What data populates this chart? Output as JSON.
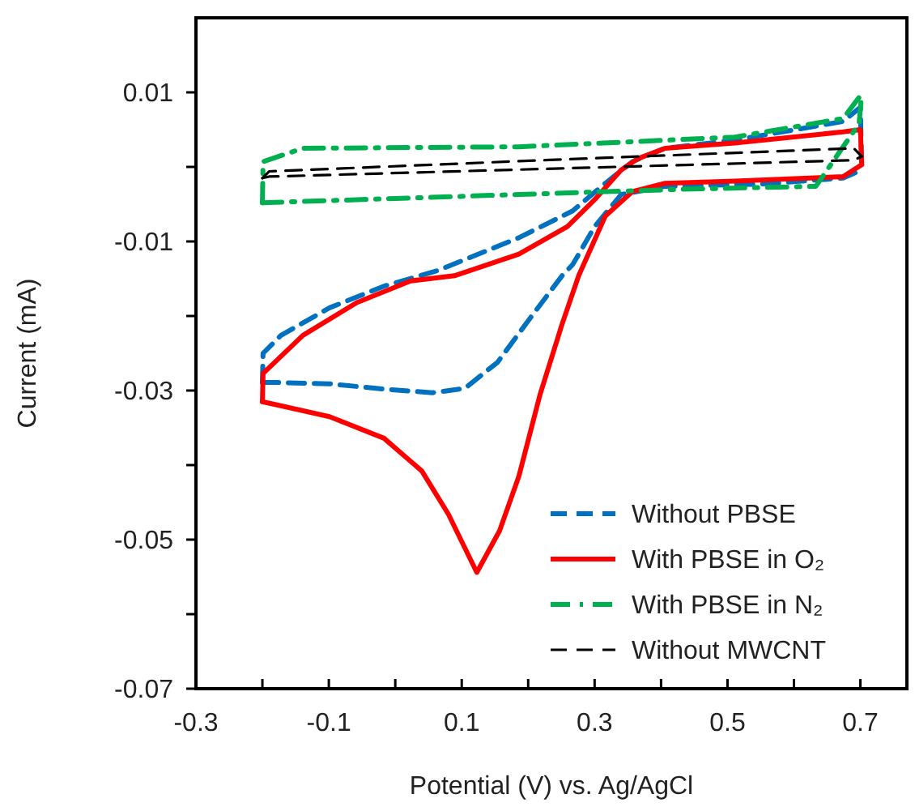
{
  "chart_data": {
    "type": "line",
    "xlabel": "Potential (V) vs. Ag/AgCl",
    "ylabel": "Current (mA)",
    "xlim": [
      -0.3,
      0.77
    ],
    "ylim": [
      -0.07,
      0.02
    ],
    "xticks": [
      -0.3,
      {
        "value": -0.2,
        "label": null
      },
      -0.1,
      {
        "value": 0,
        "label": null
      },
      0.1,
      {
        "value": 0.2,
        "label": null
      },
      0.3,
      {
        "value": 0.4,
        "label": null
      },
      0.5,
      {
        "value": 0.6,
        "label": null
      },
      0.7
    ],
    "yticks": [
      -0.07,
      {
        "value": -0.06,
        "label": null
      },
      -0.05,
      {
        "value": -0.04,
        "label": null
      },
      -0.03,
      {
        "value": -0.02,
        "label": null
      },
      -0.01,
      {
        "value": 0,
        "label": null
      },
      0.01
    ],
    "grid": false,
    "legend": "bottom right",
    "marker": "none",
    "series": [
      {
        "name": "Without PBSE",
        "color": "#0070c0",
        "line_style": "dashed",
        "x": [
          -0.2,
          -0.184,
          -0.099,
          -0.017,
          0.056,
          0.105,
          0.154,
          0.202,
          0.251,
          0.267,
          0.3,
          0.34,
          0.406,
          0.55,
          0.674,
          0.702
        ],
        "values": [
          -0.0289,
          -0.0289,
          -0.0291,
          -0.0298,
          -0.0303,
          -0.0297,
          -0.0262,
          -0.0204,
          -0.0146,
          -0.0131,
          -0.008,
          -0.0037,
          -0.0026,
          -0.0023,
          -0.0015,
          -0.0004
        ]
      },
      {
        "color": "#0070c0",
        "line_style": "dashed",
        "x": [
          -0.2,
          -0.199,
          -0.172,
          -0.099,
          -0.017,
          0.064,
          0.186,
          0.267,
          0.316,
          0.357,
          0.406,
          0.511,
          0.674,
          0.7,
          0.702
        ],
        "values": [
          -0.0289,
          -0.025,
          -0.0226,
          -0.0189,
          -0.016,
          -0.0139,
          -0.0095,
          -0.0059,
          -0.0022,
          0.0007,
          0.0025,
          0.0036,
          0.0061,
          0.008,
          -0.0004
        ]
      },
      {
        "name": "With PBSE in O₂",
        "color": "#ff0000",
        "line_style": "solid",
        "x": [
          -0.2,
          -0.099,
          -0.017,
          0.04,
          0.08,
          0.1227,
          0.157,
          0.186,
          0.218,
          0.251,
          0.276,
          0.316,
          0.357,
          0.406,
          0.511,
          0.674,
          0.702
        ],
        "values": [
          -0.0315,
          -0.0335,
          -0.0364,
          -0.0408,
          -0.0466,
          -0.0544,
          -0.0488,
          -0.0415,
          -0.0305,
          -0.0211,
          -0.0146,
          -0.0066,
          -0.0033,
          -0.0022,
          -0.0019,
          -0.0013,
          0.0003
        ]
      },
      {
        "color": "#ff0000",
        "line_style": "solid",
        "x": [
          -0.2,
          -0.199,
          -0.139,
          -0.058,
          0.023,
          0.089,
          0.186,
          0.259,
          0.3,
          0.34,
          0.365,
          0.406,
          0.511,
          0.674,
          0.7,
          0.702
        ],
        "values": [
          -0.0315,
          -0.0277,
          -0.0226,
          -0.0182,
          -0.0153,
          -0.0146,
          -0.0117,
          -0.008,
          -0.0044,
          -0.0004,
          0.0011,
          0.0025,
          0.0032,
          0.0047,
          0.005,
          0.0003
        ]
      },
      {
        "name": "With PBSE in N₂",
        "color": "#00b050",
        "line_style": "dashdot",
        "x": [
          -0.2,
          -0.058,
          0.186,
          0.43,
          0.633,
          0.698,
          0.702
        ],
        "values": [
          -0.0048,
          -0.0044,
          -0.0037,
          -0.003,
          -0.0026,
          0.0058,
          0.0098
        ]
      },
      {
        "color": "#00b050",
        "line_style": "dashdot",
        "x": [
          -0.2,
          -0.199,
          -0.139,
          0.186,
          0.511,
          0.674,
          0.702
        ],
        "values": [
          -0.0048,
          0.0007,
          0.0025,
          0.0027,
          0.004,
          0.0065,
          0.0098
        ]
      },
      {
        "name": "Without MWCNT",
        "color": "#000000",
        "line_style": "dashed",
        "x": [
          -0.2,
          -0.19,
          0.25,
          0.69,
          0.702
        ],
        "values": [
          -0.0015,
          -0.0013,
          -0.0002,
          0.0009,
          0.0014
        ]
      },
      {
        "color": "#000000",
        "line_style": "dashed",
        "x": [
          -0.2,
          -0.19,
          0.25,
          0.69,
          0.702
        ],
        "values": [
          -0.0015,
          -0.0006,
          0.001,
          0.0025,
          0.0014
        ]
      }
    ]
  }
}
